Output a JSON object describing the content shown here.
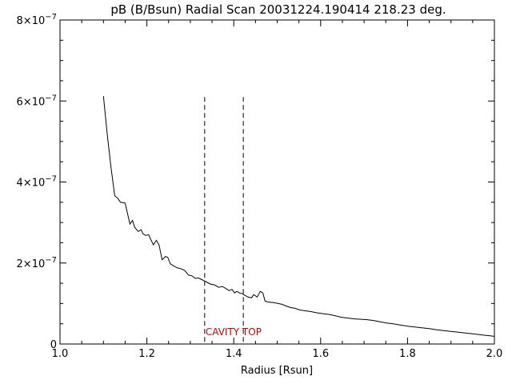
{
  "chart_data": {
    "type": "line",
    "title": "pB (B/Bsun) Radial Scan 20031224.190414 218.23 deg.",
    "xlabel": "Radius [Rsun]",
    "ylabel": "",
    "xlim": [
      1.0,
      2.0
    ],
    "ylim": [
      0,
      8e-07
    ],
    "grid": false,
    "legend": "none",
    "x_ticks": [
      {
        "value": 1.0,
        "label": "1.0"
      },
      {
        "value": 1.2,
        "label": "1.2"
      },
      {
        "value": 1.4,
        "label": "1.4"
      },
      {
        "value": 1.6,
        "label": "1.6"
      },
      {
        "value": 1.8,
        "label": "1.8"
      },
      {
        "value": 2.0,
        "label": "2.0"
      }
    ],
    "y_ticks": [
      {
        "value": 0,
        "mantissa": "0",
        "exponent": ""
      },
      {
        "value": 2e-07,
        "mantissa": "2×10",
        "exponent": "−7"
      },
      {
        "value": 4e-07,
        "mantissa": "4×10",
        "exponent": "−7"
      },
      {
        "value": 6e-07,
        "mantissa": "6×10",
        "exponent": "−7"
      },
      {
        "value": 8e-07,
        "mantissa": "8×10",
        "exponent": "−7"
      }
    ],
    "series": [
      {
        "color": "#000000",
        "x": [
          1.1,
          1.109,
          1.117,
          1.126,
          1.133,
          1.139,
          1.15,
          1.161,
          1.167,
          1.172,
          1.18,
          1.187,
          1.191,
          1.198,
          1.204,
          1.209,
          1.215,
          1.222,
          1.228,
          1.235,
          1.243,
          1.248,
          1.254,
          1.263,
          1.27,
          1.278,
          1.287,
          1.296,
          1.304,
          1.311,
          1.319,
          1.328,
          1.339,
          1.346,
          1.356,
          1.365,
          1.374,
          1.383,
          1.389,
          1.396,
          1.402,
          1.407,
          1.413,
          1.42,
          1.426,
          1.433,
          1.441,
          1.446,
          1.454,
          1.461,
          1.467,
          1.472,
          1.478,
          1.485,
          1.493,
          1.502,
          1.511,
          1.52,
          1.53,
          1.541,
          1.552,
          1.565,
          1.578,
          1.591,
          1.604,
          1.619,
          1.633,
          1.648,
          1.663,
          1.678,
          1.693,
          1.707,
          1.722,
          1.737,
          1.752,
          1.767,
          1.783,
          1.8,
          1.817,
          1.833,
          1.85,
          1.867,
          1.883,
          1.9,
          1.917,
          1.933,
          1.95,
          1.967,
          1.983,
          2.0
        ],
        "y": [
          6.12e-07,
          5.15e-07,
          4.4e-07,
          3.66e-07,
          3.6e-07,
          3.5e-07,
          3.48e-07,
          2.96e-07,
          3.05e-07,
          2.88e-07,
          2.78e-07,
          2.82e-07,
          2.72e-07,
          2.68e-07,
          2.7e-07,
          2.58e-07,
          2.45e-07,
          2.56e-07,
          2.45e-07,
          2.08e-07,
          2.16e-07,
          2.14e-07,
          1.98e-07,
          1.92e-07,
          1.88e-07,
          1.86e-07,
          1.82e-07,
          1.7e-07,
          1.68e-07,
          1.62e-07,
          1.63e-07,
          1.58e-07,
          1.52e-07,
          1.48e-07,
          1.46e-07,
          1.4e-07,
          1.42e-07,
          1.36e-07,
          1.32e-07,
          1.35e-07,
          1.26e-07,
          1.3e-07,
          1.26e-07,
          1.24e-07,
          1.2e-07,
          1.16e-07,
          1.14e-07,
          1.22e-07,
          1.16e-07,
          1.3e-07,
          1.26e-07,
          1.06e-07,
          1.04e-07,
          1.03e-07,
          1.02e-07,
          1e-07,
          9.8e-08,
          9.4e-08,
          9e-08,
          8.8e-08,
          8.4e-08,
          8.2e-08,
          8e-08,
          7.7e-08,
          7.5e-08,
          7.3e-08,
          7e-08,
          6.6e-08,
          6.4e-08,
          6.2e-08,
          6.1e-08,
          6e-08,
          5.8e-08,
          5.5e-08,
          5.2e-08,
          5e-08,
          4.7e-08,
          4.4e-08,
          4.2e-08,
          4e-08,
          3.8e-08,
          3.5e-08,
          3.3e-08,
          3.1e-08,
          2.9e-08,
          2.7e-08,
          2.5e-08,
          2.3e-08,
          2.1e-08,
          1.9e-08
        ]
      }
    ],
    "markers": [
      {
        "type": "vline",
        "x": 1.333,
        "y_top": 6.1e-07,
        "style": "dashed",
        "color": "#000000"
      },
      {
        "type": "vline",
        "x": 1.422,
        "y_top": 6.1e-07,
        "style": "dashed",
        "color": "#000000"
      }
    ],
    "annotations": [
      {
        "text": "CAVITY TOP",
        "x": 1.335,
        "y": 3e-08,
        "color": "#cc0000"
      }
    ]
  }
}
